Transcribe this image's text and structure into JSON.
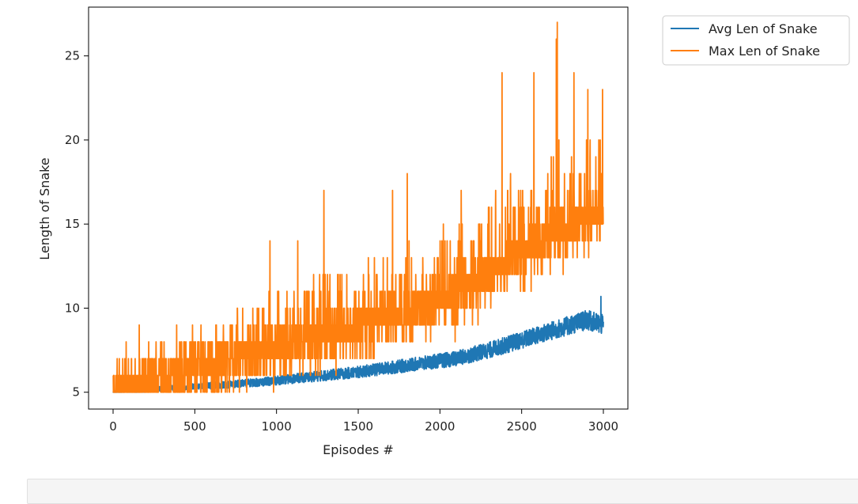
{
  "chart_data": {
    "type": "line",
    "title": "",
    "xlabel": "Episodes #",
    "ylabel": "Length of Snake",
    "xlim": [
      -150,
      3150
    ],
    "ylim": [
      4.0,
      27.9
    ],
    "xticks": [
      0,
      500,
      1000,
      1500,
      2000,
      2500,
      3000
    ],
    "yticks": [
      5,
      10,
      15,
      20,
      25
    ],
    "grid": false,
    "legend": "outside-top-right",
    "series": [
      {
        "name": "Avg Len of Snake",
        "color": "#1f77b4",
        "keypoints": {
          "x": [
            0,
            300,
            600,
            900,
            1200,
            1500,
            1800,
            2100,
            2300,
            2500,
            2700,
            2900,
            3000
          ],
          "y": [
            5.0,
            5.2,
            5.4,
            5.6,
            5.9,
            6.2,
            6.6,
            7.0,
            7.5,
            8.1,
            8.7,
            9.3,
            9.0
          ]
        },
        "band": 0.5,
        "max_point": {
          "x": 2985,
          "y": 10.7
        }
      },
      {
        "name": "Max Len of Snake",
        "color": "#ff7f0e",
        "keypoints": {
          "x": [
            0,
            300,
            600,
            900,
            1200,
            1500,
            1800,
            2100,
            2250,
            2400,
            2600,
            2800,
            3000
          ],
          "y": [
            5.0,
            6.2,
            7.2,
            8.0,
            8.8,
            9.6,
            10.4,
            11.3,
            12.2,
            13.3,
            14.3,
            15.4,
            16.5
          ]
        },
        "spread": [
          -2.0,
          5.0
        ],
        "peaks": [
          {
            "x": 2718,
            "y": 27
          },
          {
            "x": 2712,
            "y": 26
          },
          {
            "x": 2380,
            "y": 24
          },
          {
            "x": 2575,
            "y": 24
          },
          {
            "x": 2820,
            "y": 24
          },
          {
            "x": 2905,
            "y": 23
          },
          {
            "x": 2995,
            "y": 23
          },
          {
            "x": 1290,
            "y": 17
          },
          {
            "x": 1800,
            "y": 18
          },
          {
            "x": 2130,
            "y": 17
          },
          {
            "x": 1710,
            "y": 17
          },
          {
            "x": 960,
            "y": 14
          },
          {
            "x": 1130,
            "y": 14
          },
          {
            "x": 160,
            "y": 9
          },
          {
            "x": 80,
            "y": 8
          }
        ]
      }
    ]
  }
}
